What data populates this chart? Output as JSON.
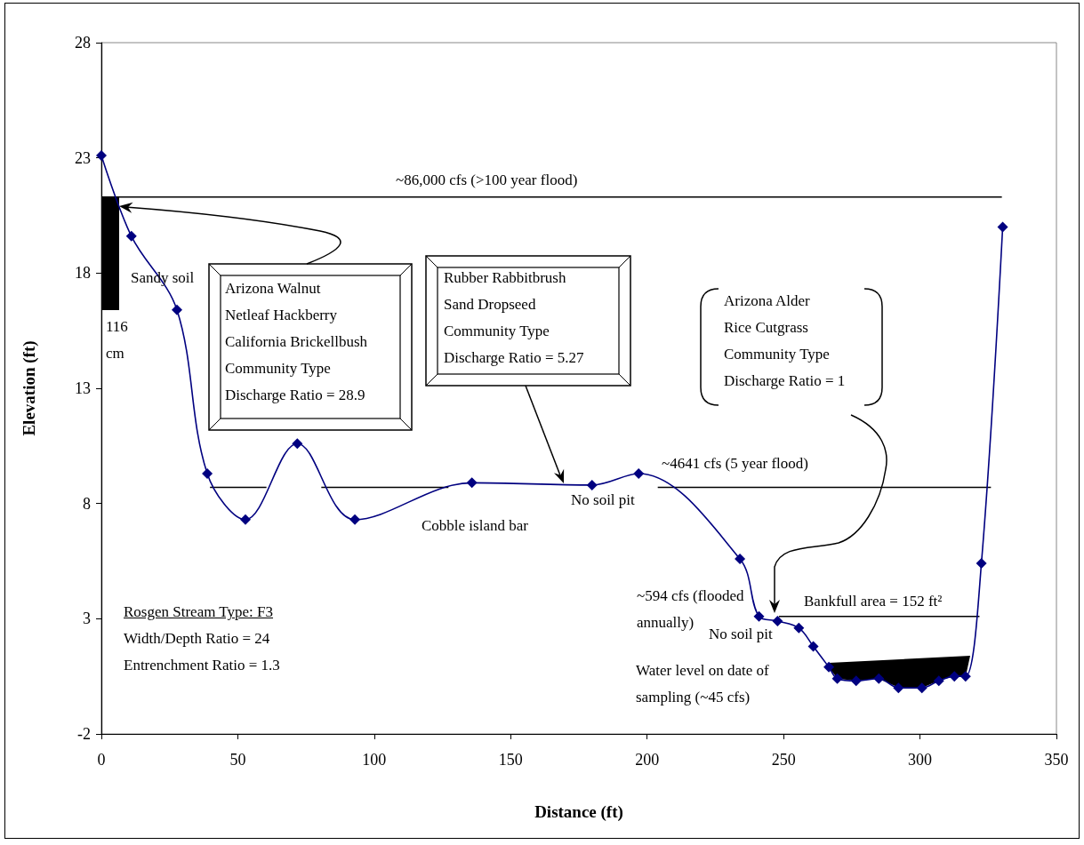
{
  "chart_data": {
    "type": "line",
    "xlabel": "Distance (ft)",
    "ylabel": "Elevation (ft)",
    "xlim": [
      0,
      350
    ],
    "xticks": [
      0,
      50,
      100,
      150,
      200,
      250,
      300,
      350
    ],
    "ylim": [
      -2,
      28
    ],
    "yticks": [
      -2,
      3,
      8,
      13,
      18,
      23,
      28
    ],
    "marker": "diamond",
    "annotations": [
      "Sandy soil",
      "116 cm",
      "Arizona Walnut\nNetleaf Hackberry\nCalifornia Brickellbush\nCommunity Type\nDischarge Ratio = 28.9",
      "Rubber Rabbitbrush\nSand Dropseed\nCommunity Type\nDischarge Ratio = 5.27",
      "Arizona Alder\nRice Cutgrass\nCommunity Type\nDischarge Ratio = 1",
      "No soil pit",
      "Cobble island bar",
      "No soil pit",
      "Bankfull area = 152 ft²",
      "Water level on date of sampling (~45 cfs)",
      "Rosgen Stream Type: F3",
      "Width/Depth Ratio = 24",
      "Entrenchment Ratio = 1.3"
    ],
    "series": [
      {
        "color": "#000080",
        "x": [
          0,
          11.0,
          27.7,
          38.8,
          52.8,
          71.8,
          92.9,
          135.8,
          179.8,
          196.9,
          234.0,
          241.0,
          247.8,
          255.6,
          260.9,
          266.6,
          269.7,
          276.6,
          284.9,
          292.1,
          300.7,
          306.9,
          312.6,
          316.7,
          322.5,
          330.3
        ],
        "values": [
          23.1,
          19.6,
          16.4,
          9.3,
          7.3,
          10.6,
          7.3,
          8.9,
          8.8,
          9.3,
          5.6,
          3.1,
          2.9,
          2.6,
          1.8,
          0.9,
          0.4,
          0.3,
          0.4,
          0.0,
          0.0,
          0.3,
          0.5,
          0.5,
          5.4,
          20.0
        ]
      },
      {
        "name": "~86,000 cfs (>100 year flood)",
        "color": "#000000",
        "marker": "none",
        "x": [
          0,
          330
        ],
        "values": [
          21.3,
          21.3
        ]
      },
      {
        "name": "~4641 cfs (5 year flood)",
        "color": "#000000",
        "marker": "none",
        "x": [
          39.8,
          60.5,
          70,
          80.6,
          127.2,
          165,
          203.9,
          326
        ],
        "values": [
          8.7,
          8.7,
          null,
          8.7,
          8.7,
          null,
          8.7,
          8.7
        ]
      },
      {
        "name": "~594 cfs (flooded annually)",
        "color": "#000000",
        "marker": "none",
        "x": [
          248.3,
          321.8
        ],
        "values": [
          3.1,
          3.1
        ]
      }
    ]
  }
}
